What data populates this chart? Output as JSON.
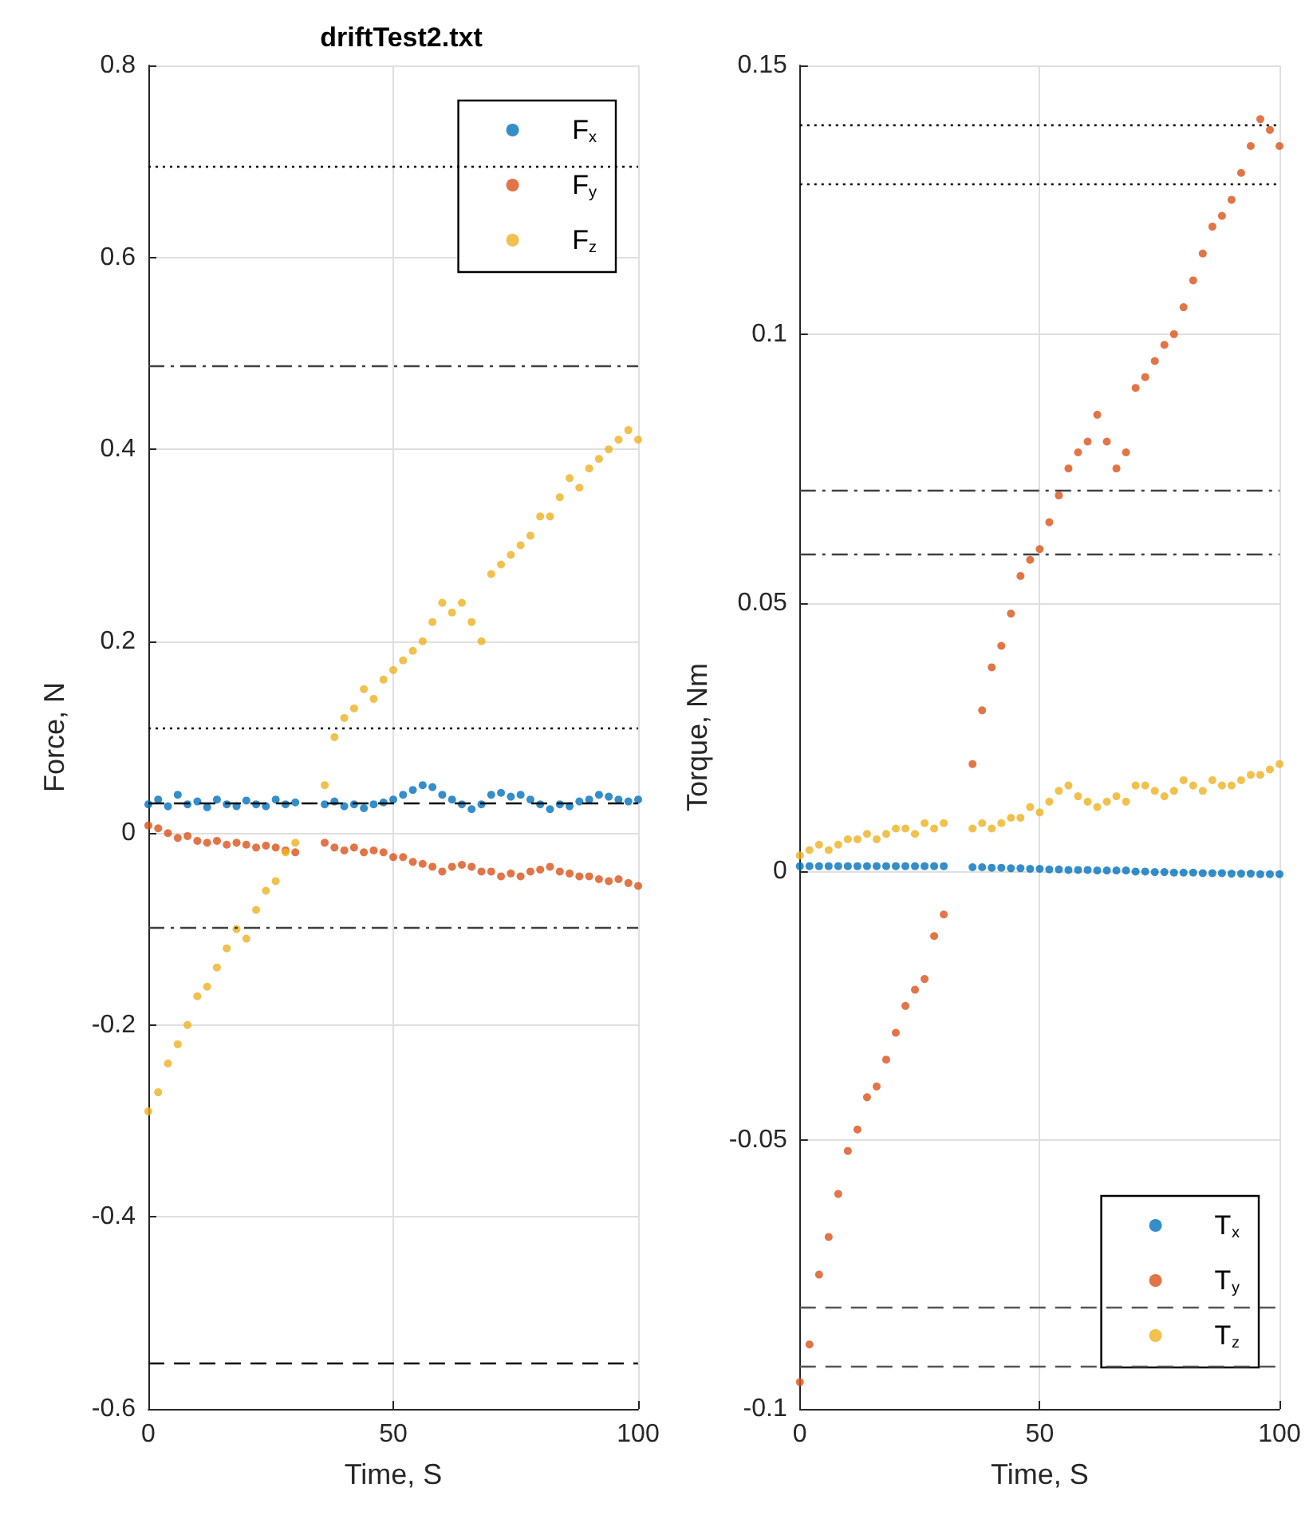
{
  "chart_data": [
    {
      "type": "scatter",
      "title": "driftTest2.txt",
      "xlabel": "Time, S",
      "ylabel": "Force, N",
      "x": [
        0,
        2,
        4,
        6,
        8,
        10,
        12,
        14,
        16,
        18,
        20,
        22,
        24,
        26,
        28,
        30,
        36,
        38,
        40,
        42,
        44,
        46,
        48,
        50,
        52,
        54,
        56,
        58,
        60,
        62,
        64,
        66,
        68,
        70,
        72,
        74,
        76,
        78,
        80,
        82,
        84,
        86,
        88,
        90,
        92,
        94,
        96,
        98,
        100
      ],
      "series": [
        {
          "name": "F$_{x}$",
          "color": "#0072bd",
          "values": [
            0.03,
            0.035,
            0.028,
            0.04,
            0.03,
            0.033,
            0.027,
            0.035,
            0.03,
            0.028,
            0.034,
            0.03,
            0.028,
            0.035,
            0.03,
            0.032,
            0.03,
            0.033,
            0.028,
            0.03,
            0.026,
            0.03,
            0.032,
            0.035,
            0.04,
            0.045,
            0.05,
            0.048,
            0.04,
            0.035,
            0.03,
            0.025,
            0.03,
            0.04,
            0.042,
            0.038,
            0.04,
            0.035,
            0.03,
            0.025,
            0.03,
            0.028,
            0.033,
            0.035,
            0.04,
            0.038,
            0.035,
            0.033,
            0.035
          ]
        },
        {
          "name": "F$_{y}$",
          "color": "#d95319",
          "values": [
            0.008,
            0.005,
            0,
            -0.005,
            -0.003,
            -0.008,
            -0.01,
            -0.008,
            -0.012,
            -0.01,
            -0.012,
            -0.015,
            -0.013,
            -0.015,
            -0.018,
            -0.02,
            -0.01,
            -0.015,
            -0.018,
            -0.015,
            -0.02,
            -0.018,
            -0.02,
            -0.025,
            -0.025,
            -0.03,
            -0.032,
            -0.035,
            -0.04,
            -0.035,
            -0.033,
            -0.035,
            -0.04,
            -0.04,
            -0.045,
            -0.042,
            -0.045,
            -0.04,
            -0.038,
            -0.035,
            -0.04,
            -0.042,
            -0.045,
            -0.045,
            -0.048,
            -0.05,
            -0.048,
            -0.052,
            -0.055
          ]
        },
        {
          "name": "F$_{z}$",
          "color": "#edb120",
          "values": [
            -0.29,
            -0.27,
            -0.24,
            -0.22,
            -0.2,
            -0.17,
            -0.16,
            -0.14,
            -0.12,
            -0.1,
            -0.11,
            -0.08,
            -0.06,
            -0.05,
            -0.02,
            -0.01,
            0.05,
            0.1,
            0.12,
            0.13,
            0.15,
            0.14,
            0.16,
            0.17,
            0.18,
            0.19,
            0.2,
            0.22,
            0.24,
            0.23,
            0.24,
            0.22,
            0.2,
            0.27,
            0.28,
            0.29,
            0.3,
            0.31,
            0.33,
            0.33,
            0.35,
            0.37,
            0.36,
            0.38,
            0.39,
            0.4,
            0.41,
            0.42,
            0.41
          ]
        }
      ],
      "xlim": [
        0,
        100
      ],
      "xticks": [
        0,
        50,
        100
      ],
      "ylim": [
        -0.6,
        0.8
      ],
      "yticks": [
        -0.6,
        -0.4,
        -0.2,
        0,
        0.2,
        0.4,
        0.6,
        0.8
      ],
      "ref_lines": [
        {
          "axis": "y",
          "value": 0.695,
          "label": null,
          "color": "#000000",
          "line_style": "dotted"
        },
        {
          "axis": "y",
          "value": 0.11,
          "label": null,
          "color": "#000000",
          "line_style": "dotted"
        },
        {
          "axis": "y",
          "value": 0.487,
          "label": null,
          "color": "#404040",
          "line_style": "dashdot"
        },
        {
          "axis": "y",
          "value": -0.098,
          "label": null,
          "color": "#404040",
          "line_style": "dashdot"
        },
        {
          "axis": "y",
          "value": 0.032,
          "label": null,
          "color": "#000000",
          "line_style": "dashed"
        },
        {
          "axis": "y",
          "value": -0.553,
          "label": null,
          "color": "#000000",
          "line_style": "dashed"
        }
      ],
      "grid": true,
      "legend": "top right",
      "marker": "circle"
    },
    {
      "type": "scatter",
      "xlabel": "Time, S",
      "ylabel": "Torque, Nm",
      "x": [
        0,
        2,
        4,
        6,
        8,
        10,
        12,
        14,
        16,
        18,
        20,
        22,
        24,
        26,
        28,
        30,
        36,
        38,
        40,
        42,
        44,
        46,
        48,
        50,
        52,
        54,
        56,
        58,
        60,
        62,
        64,
        66,
        68,
        70,
        72,
        74,
        76,
        78,
        80,
        82,
        84,
        86,
        88,
        90,
        92,
        94,
        96,
        98,
        100
      ],
      "series": [
        {
          "name": "T$_{x}$",
          "color": "#0072bd",
          "values": [
            0.001,
            0.001,
            0.001,
            0.001,
            0.001,
            0.001,
            0.001,
            0.001,
            0.001,
            0.001,
            0.001,
            0.001,
            0.001,
            0.001,
            0.001,
            0.001,
            0.0008,
            0.0008,
            0.0007,
            0.0007,
            0.0006,
            0.0006,
            0.0005,
            0.0005,
            0.0004,
            0.0004,
            0.0003,
            0.0003,
            0.0003,
            0.0002,
            0.0002,
            0.0002,
            0.0002,
            0,
            0,
            -0.0001,
            -0.0001,
            -0.0002,
            -0.0002,
            -0.0002,
            -0.0003,
            -0.0003,
            -0.0003,
            -0.0004,
            -0.0004,
            -0.0004,
            -0.0005,
            -0.0005,
            -0.0005
          ]
        },
        {
          "name": "T$_{y}$",
          "color": "#d95319",
          "values": [
            -0.095,
            -0.088,
            -0.075,
            -0.068,
            -0.06,
            -0.052,
            -0.048,
            -0.042,
            -0.04,
            -0.035,
            -0.03,
            -0.025,
            -0.022,
            -0.02,
            -0.012,
            -0.008,
            0.02,
            0.03,
            0.038,
            0.042,
            0.048,
            0.055,
            0.058,
            0.06,
            0.065,
            0.07,
            0.075,
            0.078,
            0.08,
            0.085,
            0.08,
            0.075,
            0.078,
            0.09,
            0.092,
            0.095,
            0.098,
            0.1,
            0.105,
            0.11,
            0.115,
            0.12,
            0.122,
            0.125,
            0.13,
            0.135,
            0.14,
            0.138,
            0.135
          ]
        },
        {
          "name": "T$_{z}$",
          "color": "#edb120",
          "values": [
            0.003,
            0.004,
            0.005,
            0.004,
            0.005,
            0.006,
            0.006,
            0.007,
            0.006,
            0.007,
            0.008,
            0.008,
            0.007,
            0.009,
            0.008,
            0.009,
            0.008,
            0.009,
            0.008,
            0.009,
            0.01,
            0.01,
            0.012,
            0.011,
            0.013,
            0.015,
            0.016,
            0.014,
            0.013,
            0.012,
            0.013,
            0.014,
            0.013,
            0.016,
            0.016,
            0.015,
            0.014,
            0.015,
            0.017,
            0.016,
            0.015,
            0.017,
            0.016,
            0.016,
            0.017,
            0.018,
            0.018,
            0.019,
            0.02
          ]
        }
      ],
      "xlim": [
        0,
        100
      ],
      "xticks": [
        0,
        50,
        100
      ],
      "ylim": [
        -0.1,
        0.15
      ],
      "yticks": [
        -0.1,
        -0.05,
        0,
        0.05,
        0.1,
        0.15
      ],
      "ref_lines": [
        {
          "axis": "y",
          "value": 0.139,
          "label": null,
          "color": "#000000",
          "line_style": "dotted"
        },
        {
          "axis": "y",
          "value": 0.128,
          "label": null,
          "color": "#000000",
          "line_style": "dotted"
        },
        {
          "axis": "y",
          "value": 0.071,
          "label": null,
          "color": "#404040",
          "line_style": "dashdot"
        },
        {
          "axis": "y",
          "value": 0.059,
          "label": null,
          "color": "#404040",
          "line_style": "dashdot"
        },
        {
          "axis": "y",
          "value": -0.081,
          "label": null,
          "color": "#555555",
          "line_style": "dashed"
        },
        {
          "axis": "y",
          "value": -0.092,
          "label": null,
          "color": "#555555",
          "line_style": "dashed"
        }
      ],
      "grid": true,
      "legend": "bottom right",
      "marker": "circle"
    }
  ]
}
